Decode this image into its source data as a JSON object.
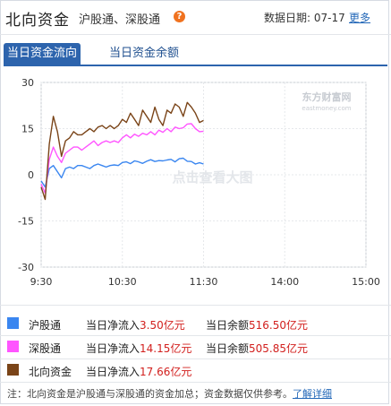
{
  "header": {
    "title": "北向资金",
    "subtitle": "沪股通、深股通",
    "help_icon": "?",
    "date_label": "数据日期:",
    "date": "07-17",
    "more": "更多"
  },
  "tabs": [
    {
      "label": "当日资金流向",
      "active": true
    },
    {
      "label": "当日资金余额",
      "active": false
    }
  ],
  "watermark": {
    "brand": "东方财富网",
    "brand_en": "eastmoney.com",
    "hint": "点击查看大图"
  },
  "chart_data": {
    "type": "line",
    "x_ticks": [
      "9:30",
      "10:30",
      "11:30",
      "14:00",
      "15:00"
    ],
    "ylim": [
      -30,
      30
    ],
    "y_ticks": [
      30,
      15,
      0,
      -15,
      -30
    ],
    "grid": true,
    "series": [
      {
        "name": "沪股通",
        "color": "#3a86f0",
        "x": [
          "9:30",
          "9:33",
          "9:36",
          "9:39",
          "9:42",
          "9:45",
          "9:48",
          "9:51",
          "9:54",
          "9:57",
          "10:00",
          "10:03",
          "10:06",
          "10:09",
          "10:12",
          "10:15",
          "10:18",
          "10:21",
          "10:24",
          "10:27",
          "10:30",
          "10:33",
          "10:36",
          "10:39",
          "10:42",
          "10:45",
          "10:48",
          "10:51",
          "10:54",
          "10:57",
          "11:00",
          "11:03",
          "11:06",
          "11:09",
          "11:12",
          "11:15",
          "11:18",
          "11:21",
          "11:24",
          "11:27",
          "11:30"
        ],
        "values": [
          -2,
          -4,
          2,
          3,
          1,
          -1,
          2,
          2.5,
          2,
          3,
          3,
          2.5,
          2,
          3,
          3.5,
          3,
          2.5,
          3,
          3.2,
          3,
          4,
          4.2,
          3.6,
          4.5,
          4.2,
          3.7,
          4.4,
          4.9,
          4.3,
          4.6,
          4.5,
          4.8,
          5,
          4.2,
          5.2,
          5.4,
          4.4,
          4.3,
          3.5,
          3.9,
          3.5
        ]
      },
      {
        "name": "深股通",
        "color": "#ff55ff",
        "x": [
          "9:30",
          "9:33",
          "9:36",
          "9:39",
          "9:42",
          "9:45",
          "9:48",
          "9:51",
          "9:54",
          "9:57",
          "10:00",
          "10:03",
          "10:06",
          "10:09",
          "10:12",
          "10:15",
          "10:18",
          "10:21",
          "10:24",
          "10:27",
          "10:30",
          "10:33",
          "10:36",
          "10:39",
          "10:42",
          "10:45",
          "10:48",
          "10:51",
          "10:54",
          "10:57",
          "11:00",
          "11:03",
          "11:06",
          "11:09",
          "11:12",
          "11:15",
          "11:18",
          "11:21",
          "11:24",
          "11:27",
          "11:30"
        ],
        "values": [
          -3,
          -6,
          5,
          9,
          6,
          4,
          7,
          8,
          9,
          9,
          8,
          9,
          10,
          11,
          9.5,
          10.5,
          11,
          10.5,
          11,
          10.5,
          12,
          13,
          12,
          13.2,
          12.5,
          13.5,
          13,
          14,
          13,
          14.5,
          13.8,
          15,
          14,
          15.5,
          15,
          15.3,
          16.5,
          16.6,
          15,
          14,
          14.15
        ]
      },
      {
        "name": "北向资金",
        "color": "#7a4418",
        "x": [
          "9:30",
          "9:33",
          "9:36",
          "9:39",
          "9:42",
          "9:45",
          "9:48",
          "9:51",
          "9:54",
          "9:57",
          "10:00",
          "10:03",
          "10:06",
          "10:09",
          "10:12",
          "10:15",
          "10:18",
          "10:21",
          "10:24",
          "10:27",
          "10:30",
          "10:33",
          "10:36",
          "10:39",
          "10:42",
          "10:45",
          "10:48",
          "10:51",
          "10:54",
          "10:57",
          "11:00",
          "11:03",
          "11:06",
          "11:09",
          "11:12",
          "11:15",
          "11:18",
          "11:21",
          "11:24",
          "11:27",
          "11:30"
        ],
        "values": [
          -4,
          -8,
          10,
          19,
          14,
          6,
          11,
          12,
          14,
          13,
          13,
          14,
          15,
          14,
          15.5,
          16,
          15,
          16,
          15,
          16,
          18,
          17,
          20,
          18,
          16,
          21,
          19,
          17,
          22,
          18,
          16,
          21,
          20,
          23,
          22,
          19,
          23.5,
          22,
          20,
          17,
          17.66
        ]
      }
    ]
  },
  "legend": [
    {
      "name": "沪股通",
      "color": "#3a86f0",
      "flow_label": "当日净流入",
      "flow_value": "3.50亿元",
      "balance_label": "当日余额",
      "balance_value": "516.50亿元"
    },
    {
      "name": "深股通",
      "color": "#ff55ff",
      "flow_label": "当日净流入",
      "flow_value": "14.15亿元",
      "balance_label": "当日余额",
      "balance_value": "505.85亿元"
    },
    {
      "name": "北向资金",
      "color": "#7a4418",
      "flow_label": "当日净流入",
      "flow_value": "17.66亿元"
    }
  ],
  "footer": {
    "note": "注：北向资金是沪股通与深股通的资金加总；资金数据仅供参考。",
    "link": "了解详细"
  }
}
